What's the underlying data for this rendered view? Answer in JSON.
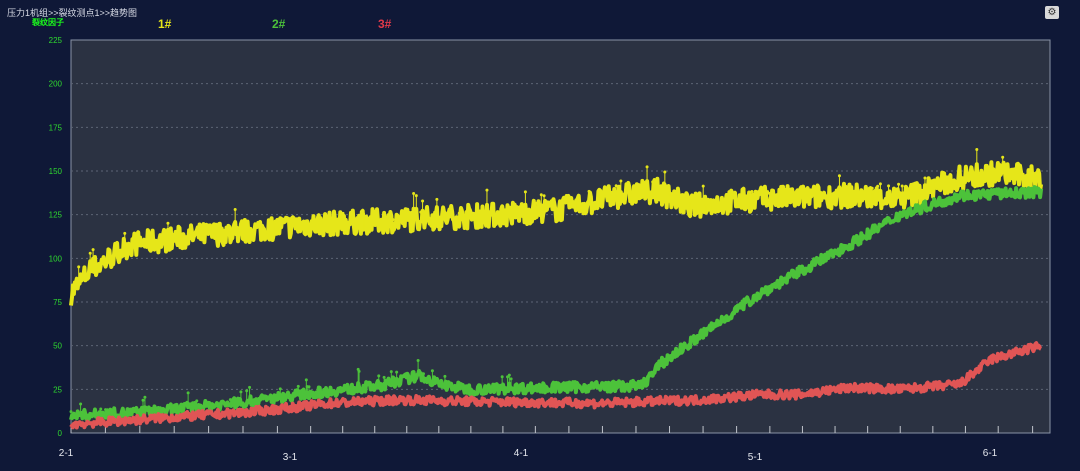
{
  "breadcrumb": "压力1机组>>裂纹测点1>>趋势图",
  "settings_icon": "gear-icon",
  "chart_data": {
    "type": "line",
    "title": "",
    "ylabel": "裂纹因子",
    "xlabel": "",
    "ylim": [
      0,
      225
    ],
    "yticks": [
      "0",
      "25",
      "50",
      "75",
      "100",
      "125",
      "150",
      "175",
      "200",
      "225"
    ],
    "xticks": [
      {
        "day": 0,
        "label": "2-1"
      },
      {
        "day": 28,
        "label": "3-1"
      },
      {
        "day": 59,
        "label": "4-1"
      },
      {
        "day": 89,
        "label": "5-1"
      },
      {
        "day": 120,
        "label": "6-1"
      }
    ],
    "xlim_days": [
      0,
      126
    ],
    "grid": true,
    "legend_placement": "top",
    "series": [
      {
        "name": "1#",
        "color": "#e6e619",
        "points": [
          [
            0,
            80
          ],
          [
            2.4,
            93
          ],
          [
            7.4,
            108
          ],
          [
            16.1,
            113
          ],
          [
            28.7,
            119
          ],
          [
            42,
            122
          ],
          [
            55.5,
            125
          ],
          [
            63.4,
            128
          ],
          [
            71.1,
            136
          ],
          [
            75.6,
            139
          ],
          [
            80.1,
            130
          ],
          [
            89,
            134
          ],
          [
            100.9,
            136
          ],
          [
            107.5,
            134
          ],
          [
            115.4,
            146
          ],
          [
            120.6,
            149
          ],
          [
            125.8,
            145
          ]
        ]
      },
      {
        "name": "2#",
        "color": "#4cc23a",
        "points": [
          [
            0,
            10
          ],
          [
            9.5,
            12
          ],
          [
            22.4,
            18
          ],
          [
            28.7,
            22
          ],
          [
            39.4,
            27
          ],
          [
            44.7,
            33
          ],
          [
            47.3,
            28
          ],
          [
            51.3,
            25
          ],
          [
            73.8,
            27
          ],
          [
            76.4,
            40
          ],
          [
            89,
            80
          ],
          [
            100.9,
            108
          ],
          [
            107.5,
            125
          ],
          [
            115.4,
            136
          ],
          [
            125.8,
            138
          ]
        ]
      },
      {
        "name": "3#",
        "color": "#e05555",
        "points": [
          [
            0,
            5
          ],
          [
            9.5,
            8
          ],
          [
            22.4,
            12
          ],
          [
            32.6,
            17
          ],
          [
            42,
            19
          ],
          [
            52.7,
            18
          ],
          [
            68.5,
            17
          ],
          [
            81.4,
            19
          ],
          [
            89,
            22
          ],
          [
            94.3,
            22
          ],
          [
            100.9,
            26
          ],
          [
            107.5,
            25
          ],
          [
            115.4,
            28
          ],
          [
            119.4,
            42
          ],
          [
            125.8,
            50
          ]
        ]
      }
    ]
  }
}
